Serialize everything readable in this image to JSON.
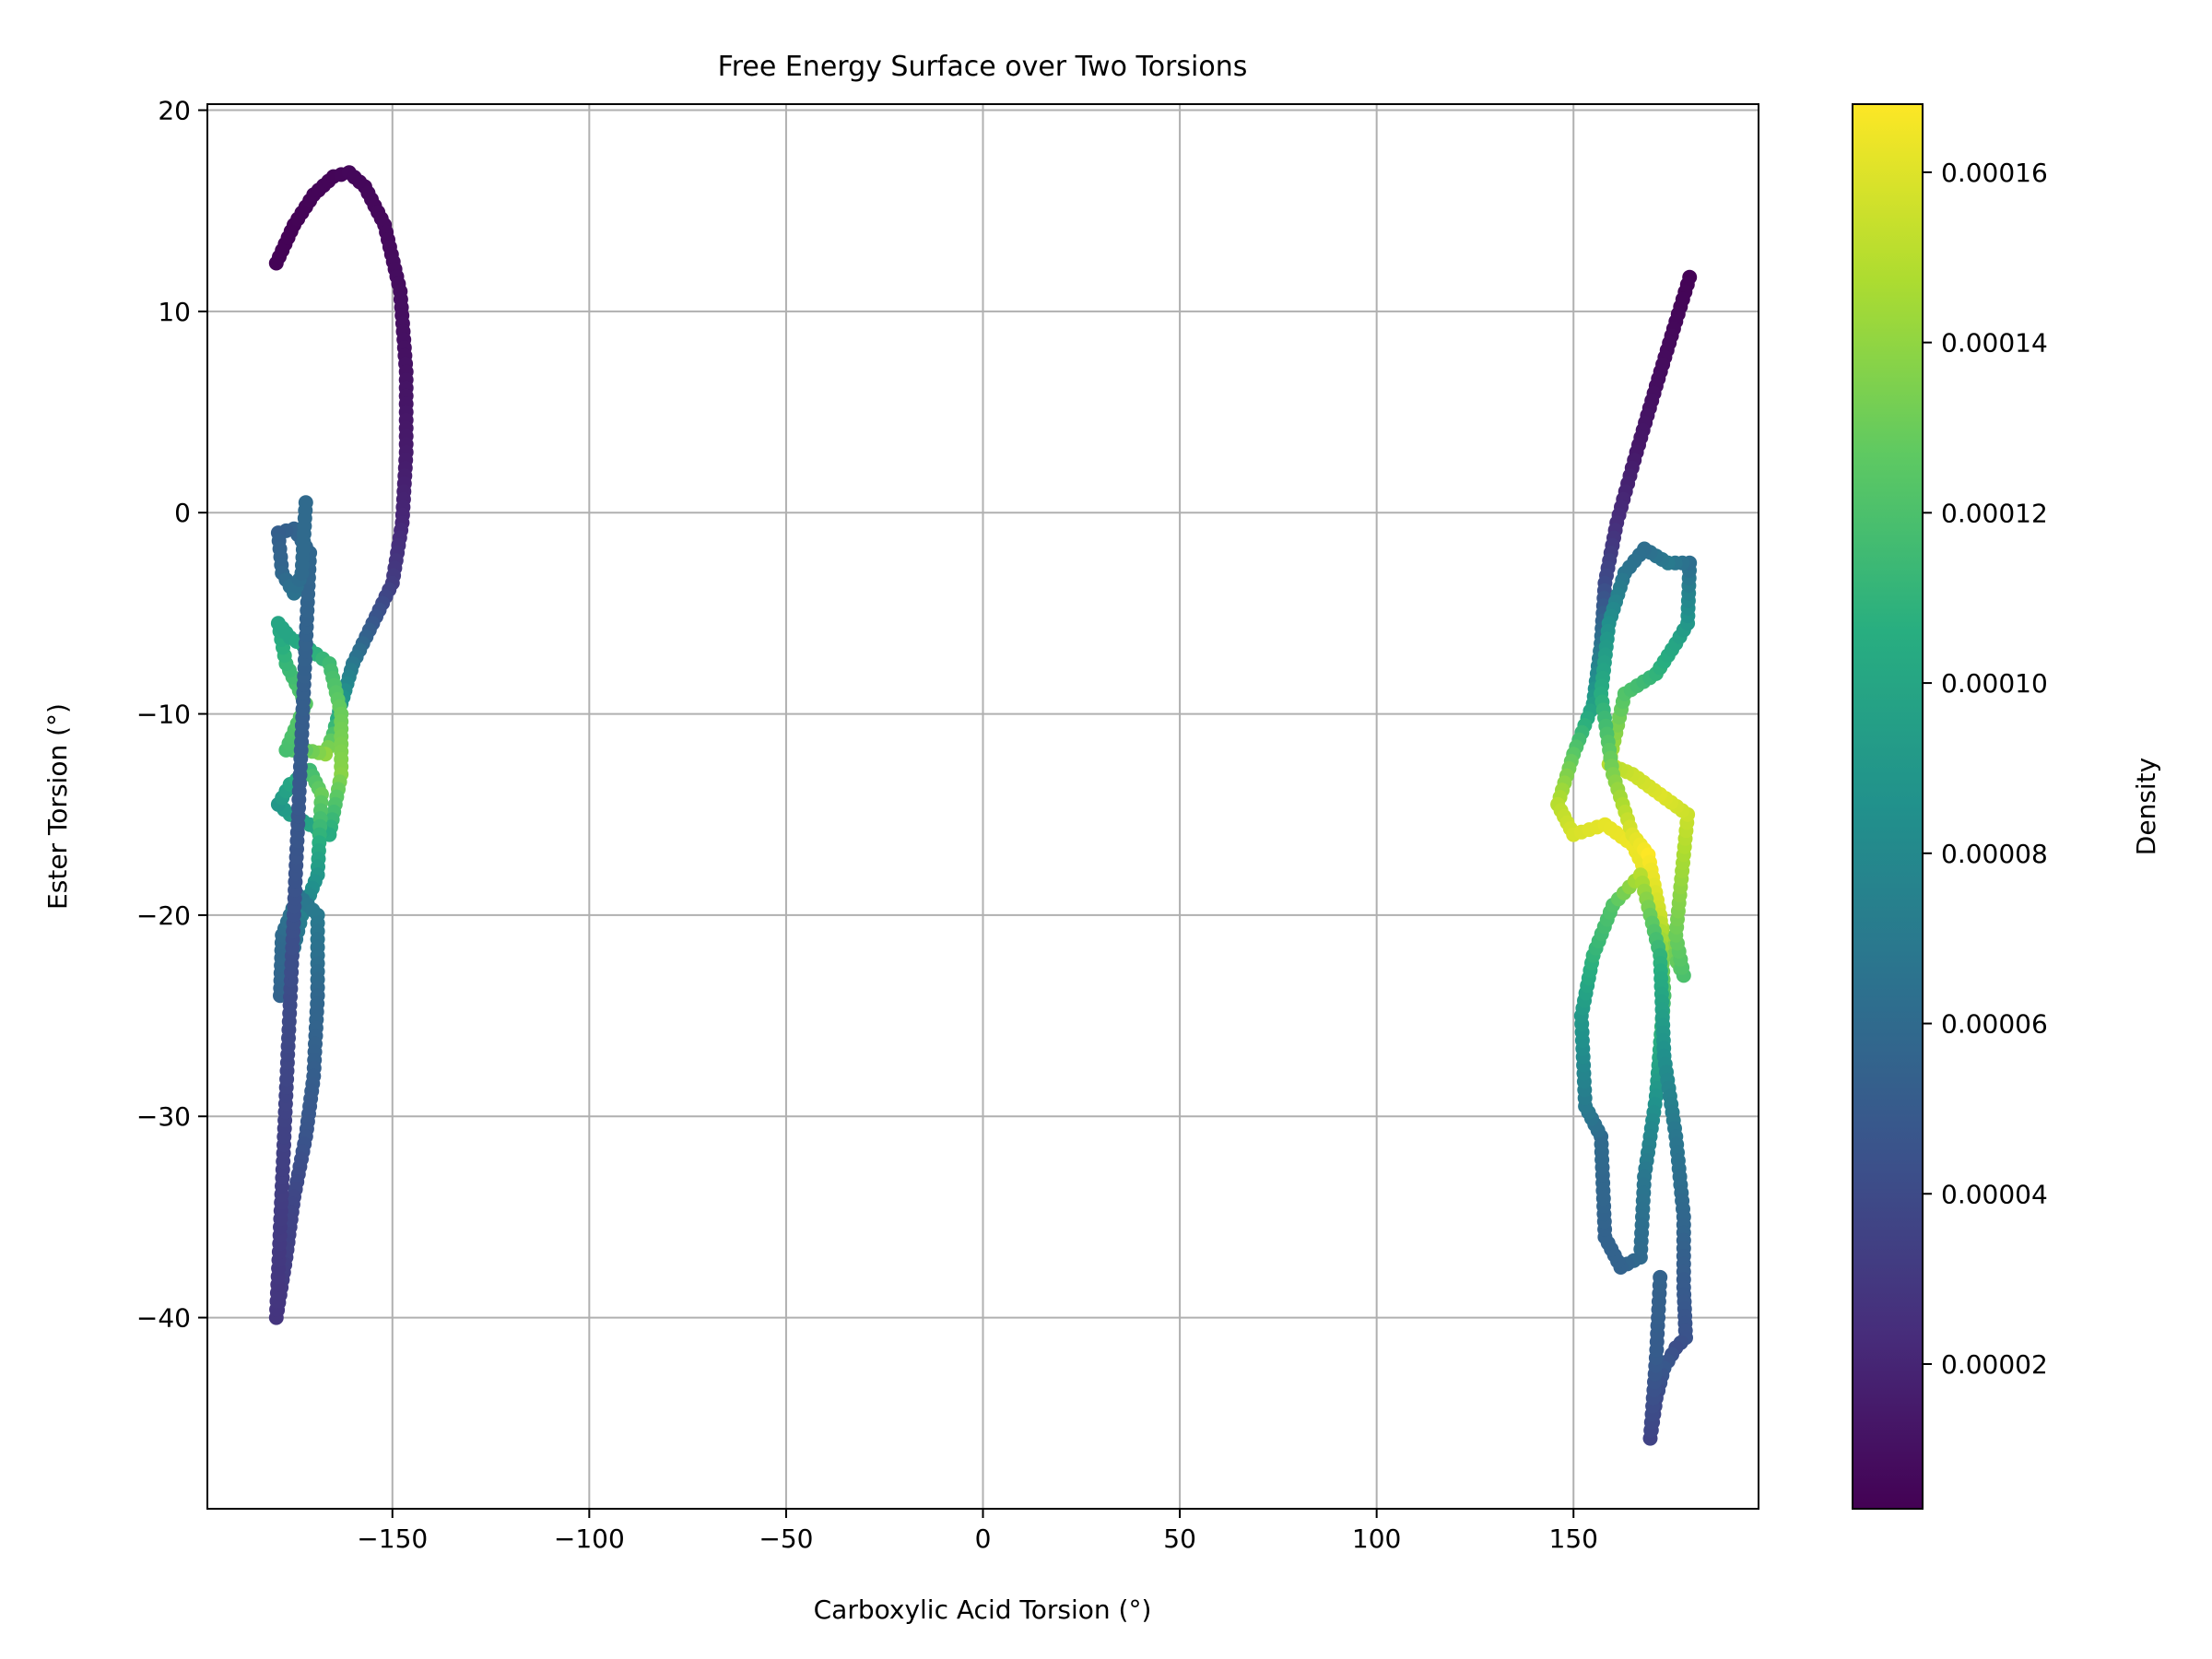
{
  "chart_data": {
    "type": "scatter",
    "title": "Free Energy Surface over Two Torsions",
    "xlabel": "Carboxylic Acid Torsion (°)",
    "ylabel": "Ester Torsion (°)",
    "xlim": [
      -197,
      197
    ],
    "ylim": [
      -49.5,
      20.3
    ],
    "xticks": [
      -150,
      -100,
      -50,
      0,
      50,
      100,
      150
    ],
    "xtick_labels": [
      "−150",
      "−100",
      "−50",
      "0",
      "50",
      "100",
      "150"
    ],
    "yticks": [
      20,
      10,
      0,
      -10,
      -20,
      -30,
      -40
    ],
    "ytick_labels": [
      "20",
      "10",
      "0",
      "−10",
      "−20",
      "−30",
      "−40"
    ],
    "grid": true,
    "colorbar": {
      "label": "Density",
      "colormap": "viridis",
      "range": [
        3e-06,
        0.000168
      ],
      "ticks": [
        2e-05,
        4e-05,
        6e-05,
        8e-05,
        0.0001,
        0.00012,
        0.00014,
        0.00016
      ],
      "tick_labels": [
        "0.00002",
        "0.00004",
        "0.00006",
        "0.00008",
        "0.00010",
        "0.00012",
        "0.00014",
        "0.00016"
      ]
    },
    "series": [
      {
        "points": [
          [
            -179.5,
            12.4,
            4e-06
          ],
          [
            -175,
            14.3,
            4e-06
          ],
          [
            -170,
            15.8,
            5e-06
          ],
          [
            -165,
            16.7,
            5e-06
          ],
          [
            -161,
            16.9,
            6e-06
          ],
          [
            -157,
            16.2,
            6e-06
          ],
          [
            -152,
            14.3,
            7e-06
          ],
          [
            -148,
            11,
            9e-06
          ],
          [
            -146.5,
            7,
            1.1e-05
          ],
          [
            -146.5,
            3,
            1.5e-05
          ],
          [
            -147.5,
            -0.5,
            2.1e-05
          ],
          [
            -150,
            -3.5,
            3.2e-05
          ],
          [
            -155,
            -5.5,
            4.8e-05
          ],
          [
            -160,
            -7.5,
            6.8e-05
          ],
          [
            -163,
            -9.5,
            9e-05
          ],
          [
            -165,
            -11,
            0.00012
          ],
          [
            -167,
            -12,
            0.00014
          ],
          [
            -172,
            -11.8,
            0.000128
          ],
          [
            -177,
            -11.8,
            0.000118
          ],
          [
            -172,
            -9.5,
            0.000125
          ],
          [
            -177,
            -7.5,
            0.000112
          ],
          [
            -179,
            -5.5,
            0.0001
          ],
          [
            -176,
            -6.2,
            0.0001
          ],
          [
            -171,
            -6.8,
            0.000105
          ],
          [
            -166,
            -7.5,
            0.000115
          ],
          [
            -163,
            -10,
            0.00013
          ],
          [
            -163,
            -13,
            0.000138
          ],
          [
            -166,
            -16,
            0.000105
          ],
          [
            -171,
            -15.5,
            0.0001
          ],
          [
            -176,
            -15,
            9.5e-05
          ],
          [
            -179,
            -14.5,
            9e-05
          ],
          [
            -176,
            -13.5,
            0.0001
          ],
          [
            -171,
            -12.8,
            0.000115
          ],
          [
            -168,
            -14,
            0.00013
          ],
          [
            -169,
            -18,
            9e-05
          ],
          [
            -173,
            -20,
            7.5e-05
          ],
          [
            -175.5,
            -22,
            6.2e-05
          ],
          [
            -178.5,
            -24,
            5.5e-05
          ],
          [
            -178,
            -21,
            6e-05
          ],
          [
            -174,
            -19,
            6.8e-05
          ],
          [
            -169,
            -20,
            7e-05
          ],
          [
            -169,
            -24,
            5.8e-05
          ],
          [
            -170,
            -28,
            5.2e-05
          ],
          [
            -172,
            -31,
            4.6e-05
          ],
          [
            -175,
            -34,
            3.8e-05
          ],
          [
            -177,
            -37,
            3.4e-05
          ],
          [
            -179.5,
            -40,
            2.8e-05
          ],
          [
            -171,
            -2,
            5.8e-05
          ],
          [
            -175,
            -0.8,
            5.5e-05
          ],
          [
            -179,
            -1,
            5.2e-05
          ],
          [
            -178,
            -3,
            5.8e-05
          ],
          [
            -175,
            -4,
            6.5e-05
          ],
          [
            -173,
            -3,
            6e-05
          ],
          [
            -172,
            0.5,
            6e-05
          ]
        ]
      },
      {
        "points": [
          [
            179.5,
            11.7,
            4e-06
          ],
          [
            176,
            9.5,
            6e-06
          ],
          [
            171,
            6.3,
            9e-06
          ],
          [
            166,
            3,
            1.4e-05
          ],
          [
            161,
            -0.5,
            2.4e-05
          ],
          [
            158,
            -3.5,
            4e-05
          ],
          [
            157,
            -6.5,
            6.5e-05
          ],
          [
            155,
            -9.5,
            9.5e-05
          ],
          [
            150,
            -12,
            0.000125
          ],
          [
            146,
            -14.5,
            0.00015
          ],
          [
            150,
            -16,
            0.000158
          ],
          [
            158,
            -15.5,
            0.000162
          ],
          [
            165,
            -16.5,
            0.000164
          ],
          [
            170,
            -18.5,
            0.000162
          ],
          [
            173,
            -21,
            0.000145
          ],
          [
            178,
            -23,
            0.00012
          ],
          [
            176,
            -21,
            0.00013
          ],
          [
            179,
            -15,
            0.000155
          ],
          [
            172,
            -14,
            0.00016
          ],
          [
            165,
            -13,
            0.000155
          ],
          [
            159,
            -12.5,
            0.00015
          ],
          [
            163,
            -9,
            0.000122
          ],
          [
            171,
            -8,
            0.00011
          ],
          [
            176,
            -6.5,
            0.0001
          ],
          [
            179,
            -5.5,
            9e-05
          ],
          [
            179.5,
            -2.5,
            6.2e-05
          ],
          [
            174,
            -2.5,
            7e-05
          ],
          [
            168,
            -1.8,
            6.2e-05
          ],
          [
            163,
            -3,
            6.6e-05
          ],
          [
            159,
            -5.5,
            8.5e-05
          ],
          [
            157,
            -9,
            0.000105
          ],
          [
            160,
            -13,
            0.000135
          ],
          [
            165,
            -16,
            0.00016
          ],
          [
            169,
            -17,
            0.000168
          ],
          [
            172,
            -20,
            0.000155
          ],
          [
            173,
            -24,
            0.00012
          ],
          [
            171,
            -29,
            8.8e-05
          ],
          [
            168,
            -33,
            6.8e-05
          ],
          [
            167,
            -37,
            6e-05
          ],
          [
            162,
            -37.5,
            5.5e-05
          ],
          [
            158,
            -36,
            5.5e-05
          ],
          [
            157,
            -31,
            6e-05
          ],
          [
            153,
            -29.5,
            7e-05
          ],
          [
            152,
            -25,
            9e-05
          ],
          [
            155,
            -22,
            0.00011
          ],
          [
            160,
            -19.5,
            0.000122
          ],
          [
            167,
            -18,
            0.00015
          ],
          [
            172,
            -22,
            0.00011
          ],
          [
            173,
            -27,
            8.5e-05
          ],
          [
            176,
            -31,
            6.8e-05
          ],
          [
            178,
            -35,
            5.8e-05
          ],
          [
            178,
            -38.5,
            5e-05
          ],
          [
            178.5,
            -41,
            4.5e-05
          ],
          [
            176,
            -41.5,
            4.2e-05
          ],
          [
            173,
            -42.5,
            4.8e-05
          ],
          [
            171,
            -44,
            4e-05
          ],
          [
            169.5,
            -46,
            3.6e-05
          ],
          [
            171,
            -42,
            5e-05
          ],
          [
            172,
            -38,
            5.5e-05
          ]
        ]
      }
    ]
  }
}
